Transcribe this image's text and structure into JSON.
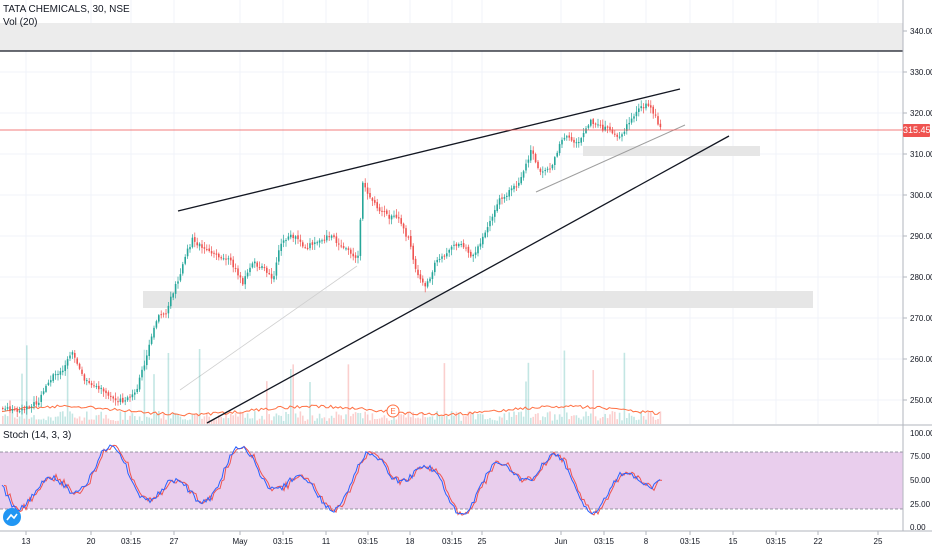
{
  "legend": {
    "symbol": "TATA CHEMICALS, 30, NSE",
    "volume": "Vol (20)",
    "stoch": "Stoch (14, 3, 3)"
  },
  "price_axis": {
    "labels": [
      "340.00",
      "330.00",
      "320.00",
      "310.00",
      "300.00",
      "290.00",
      "280.00",
      "270.00",
      "260.00",
      "250.00"
    ],
    "current_price": "315.45"
  },
  "stoch_axis": {
    "labels": [
      "100.00",
      "75.00",
      "50.00",
      "25.00",
      "0.00"
    ]
  },
  "time_axis": {
    "labels": [
      "13",
      "20",
      "03:15",
      "27",
      "May",
      "03:15",
      "11",
      "03:15",
      "18",
      "03:15",
      "25",
      "Jun",
      "03:15",
      "8",
      "03:15",
      "15",
      "03:15",
      "22",
      "25"
    ]
  },
  "volume_marker": "E",
  "colors": {
    "up": "#26a69a",
    "down": "#ef5350",
    "price_line": "#ef5350",
    "stoch_fill": "#e1bee7",
    "stoch_k": "#2962ff",
    "stoch_d": "#ef5350",
    "trendline": "#131722"
  }
}
